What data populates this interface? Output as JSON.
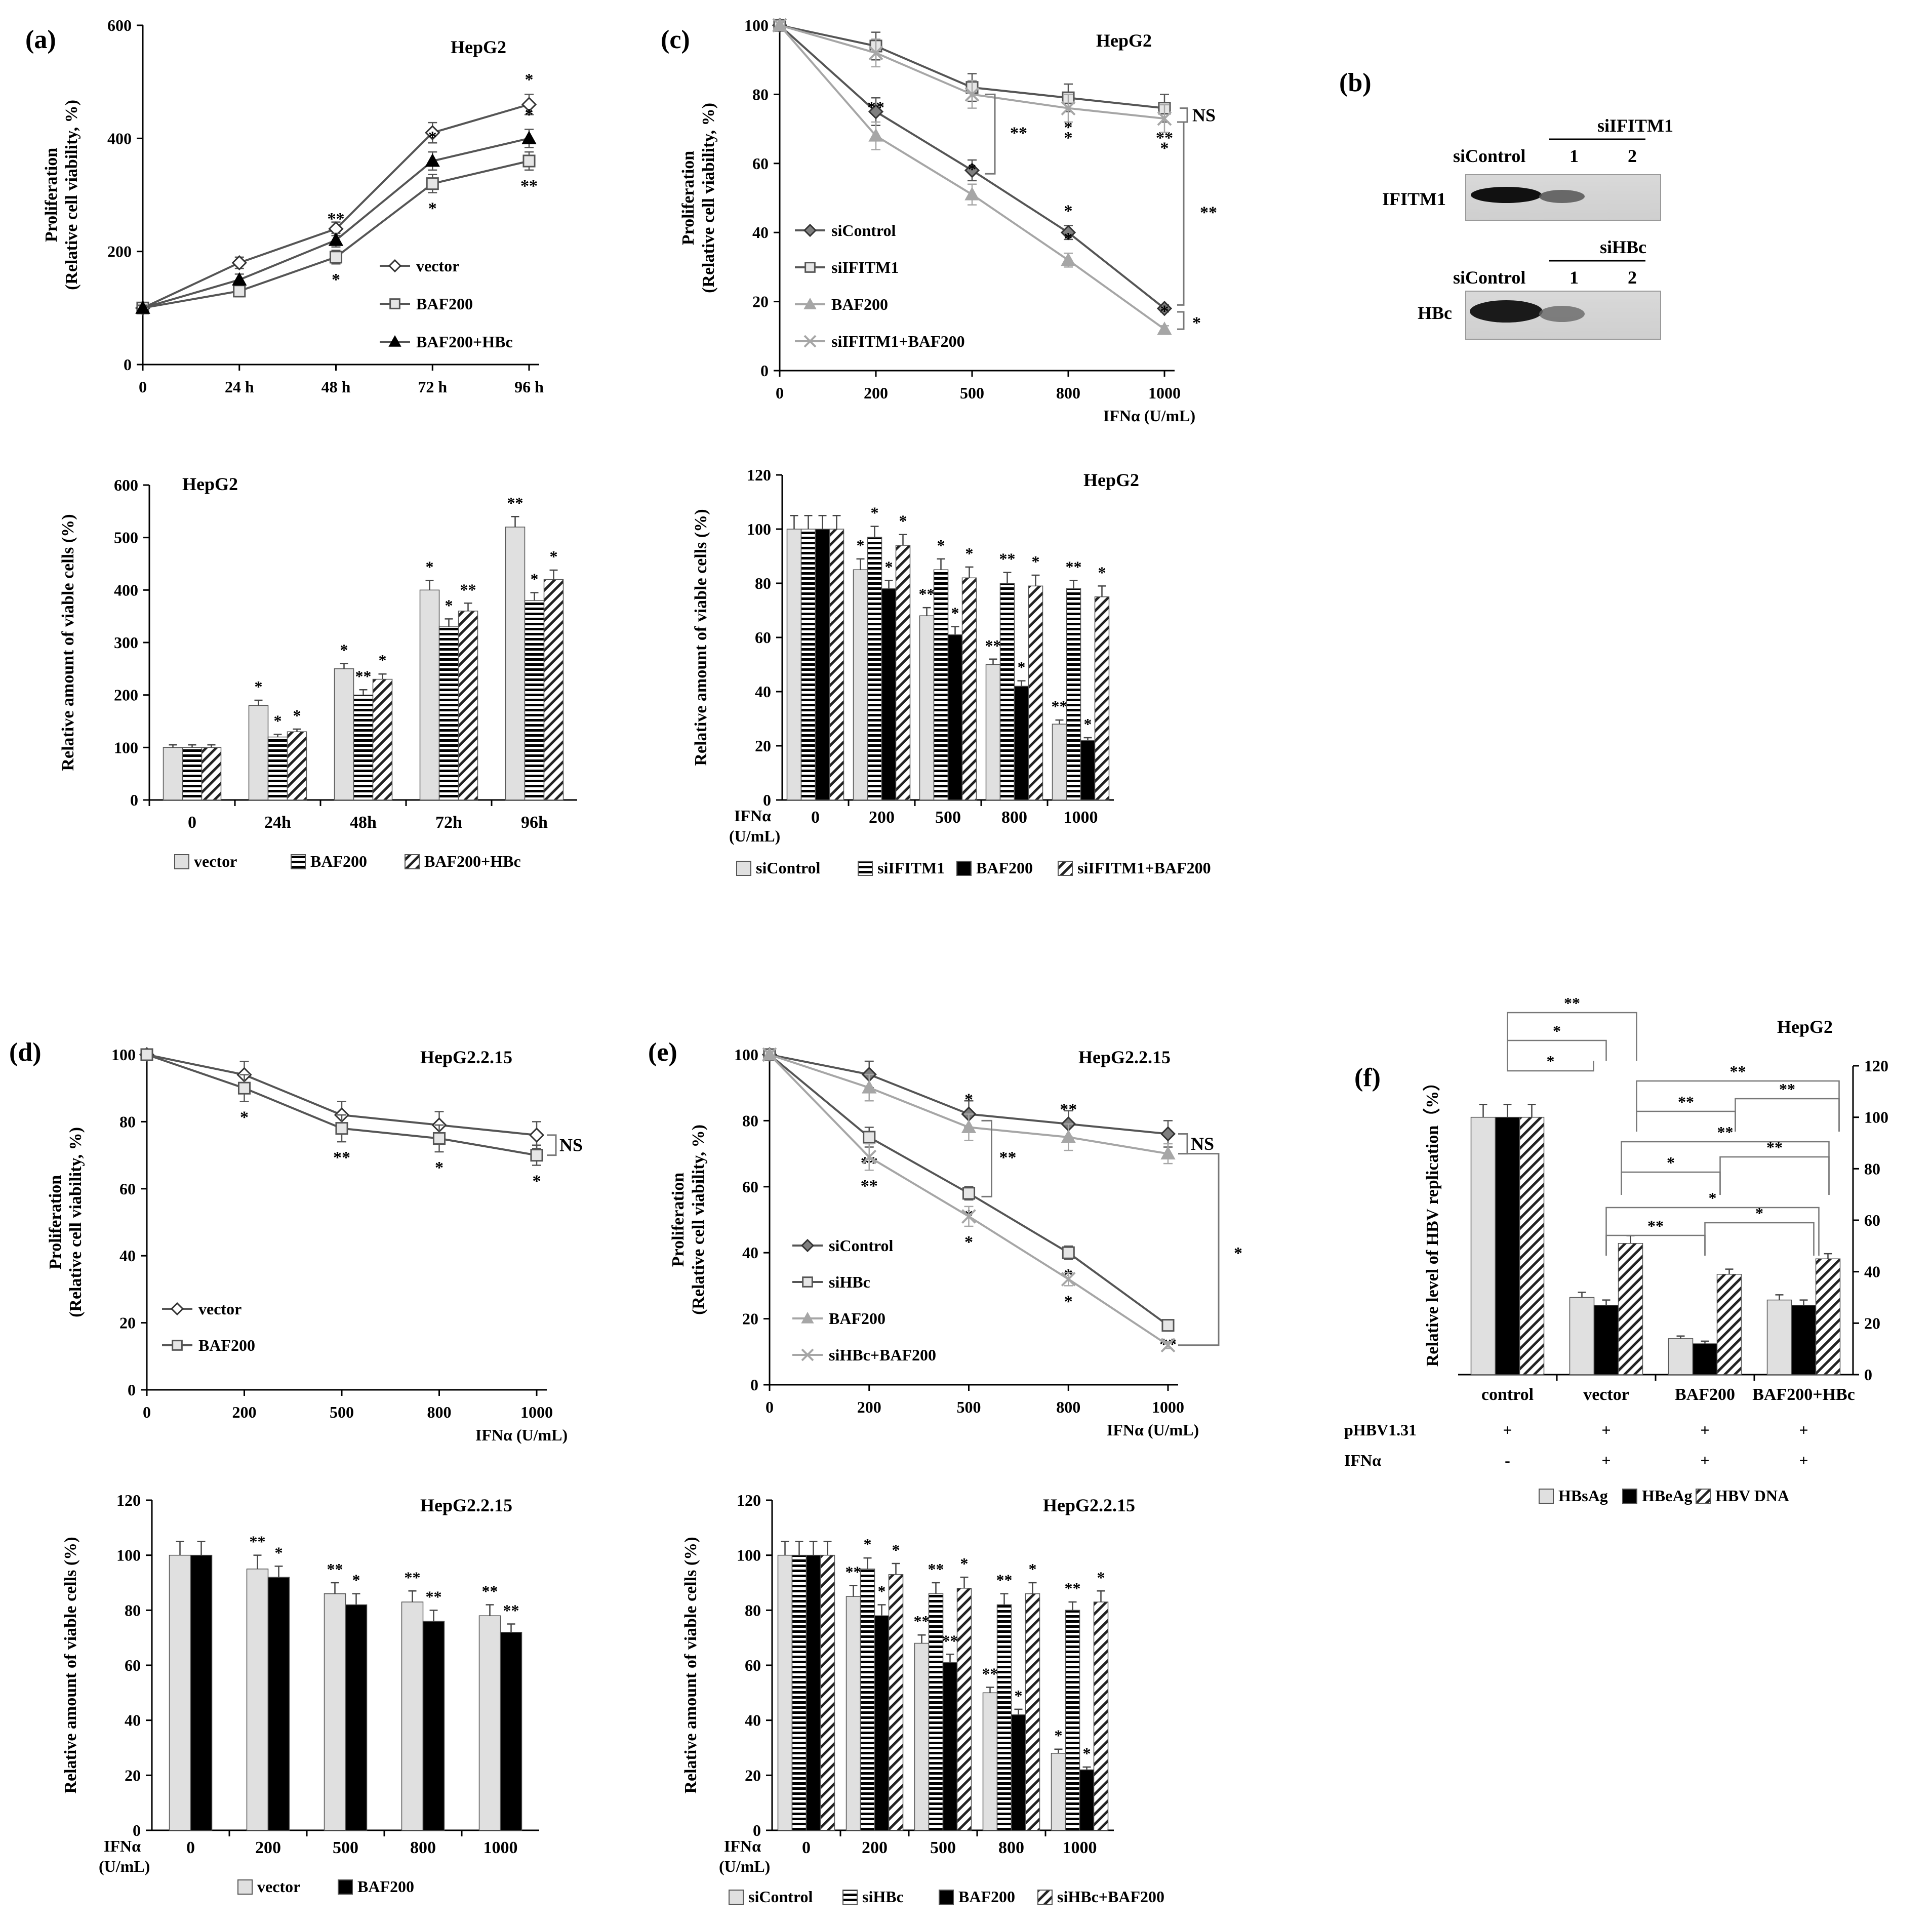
{
  "figure": {
    "panel_labels": [
      "(a)",
      "(b)",
      "(c)",
      "(d)",
      "(e)",
      "(f)"
    ]
  },
  "colors": {
    "vector": "#e0e0e0",
    "black": "#000000",
    "grey_line": "#a6a6a6",
    "blot_band": "#1a1a1a",
    "blot_bg": "#d9d9d9"
  },
  "chart_data": [
    {
      "id": "a_top",
      "type": "line",
      "panel": "(a)",
      "title": "HepG2",
      "ylabel": [
        "Proliferation",
        "(Relative cell viability, %)"
      ],
      "xlabel": "",
      "categories": [
        "0",
        "24 h",
        "48 h",
        "72 h",
        "96 h"
      ],
      "ylim": [
        0,
        600
      ],
      "yticks": [
        0,
        200,
        400,
        600
      ],
      "series": [
        {
          "name": "vector",
          "marker": "diamond-open",
          "values": [
            100,
            180,
            240,
            410,
            460
          ],
          "errors": [
            5,
            10,
            12,
            18,
            18
          ],
          "sig": [
            "",
            "",
            "",
            "",
            "*"
          ]
        },
        {
          "name": "BAF200",
          "marker": "square-open",
          "values": [
            100,
            130,
            190,
            320,
            360
          ],
          "errors": [
            5,
            10,
            12,
            16,
            16
          ],
          "sig": [
            "",
            "",
            "*",
            "*",
            "**"
          ]
        },
        {
          "name": "BAF200+HBc",
          "marker": "triangle-filled",
          "values": [
            100,
            150,
            220,
            360,
            400
          ],
          "errors": [
            5,
            10,
            12,
            16,
            16
          ],
          "sig": [
            "",
            "",
            "**",
            "*",
            "*"
          ]
        }
      ]
    },
    {
      "id": "a_bottom",
      "type": "bar",
      "title": "HepG2",
      "ylabel": "Relative amount of viable cells (%)",
      "categories": [
        "0",
        "24h",
        "48h",
        "72h",
        "96h"
      ],
      "ylim": [
        0,
        600
      ],
      "yticks": [
        0,
        100,
        200,
        300,
        400,
        500,
        600
      ],
      "series": [
        {
          "name": "vector",
          "pattern": "light",
          "values": [
            100,
            180,
            250,
            400,
            520
          ],
          "errors": [
            5,
            10,
            10,
            18,
            20
          ],
          "sig": [
            "",
            "*",
            "*",
            "*",
            "**"
          ]
        },
        {
          "name": "BAF200",
          "pattern": "hstripe",
          "values": [
            100,
            120,
            200,
            330,
            380
          ],
          "errors": [
            5,
            5,
            10,
            15,
            15
          ],
          "sig": [
            "",
            "*",
            "**",
            "*",
            "*"
          ]
        },
        {
          "name": "BAF200+HBc",
          "pattern": "diag",
          "values": [
            100,
            130,
            230,
            360,
            420
          ],
          "errors": [
            5,
            5,
            10,
            15,
            18
          ],
          "sig": [
            "",
            "*",
            "*",
            "**",
            "*"
          ]
        }
      ]
    },
    {
      "id": "c_top",
      "type": "line",
      "panel": "(c)",
      "title": "HepG2",
      "ylabel": [
        "Proliferation",
        "(Relative cell viability, %)"
      ],
      "xlabel": "IFNα (U/mL)",
      "categories": [
        "0",
        "200",
        "500",
        "800",
        "1000"
      ],
      "ylim": [
        0,
        100
      ],
      "yticks": [
        0,
        20,
        40,
        60,
        80,
        100
      ],
      "series": [
        {
          "name": "siControl",
          "marker": "diamond-filled",
          "values": [
            100,
            75,
            58,
            40,
            18
          ],
          "errors": [
            0,
            4,
            3,
            2,
            1
          ],
          "sig": [
            "",
            "",
            "",
            "*",
            ""
          ]
        },
        {
          "name": "siIFITM1",
          "marker": "square-open",
          "values": [
            100,
            94,
            82,
            79,
            76
          ],
          "errors": [
            0,
            4,
            4,
            4,
            4
          ],
          "sig": [
            "",
            "",
            "",
            "*",
            "**"
          ]
        },
        {
          "name": "BAF200",
          "marker": "triangle-grey",
          "values": [
            100,
            68,
            51,
            32,
            12
          ],
          "errors": [
            0,
            4,
            3,
            2,
            1
          ],
          "sig": [
            "",
            "**",
            "*",
            "*",
            "*"
          ]
        },
        {
          "name": "siIFITM1+BAF200",
          "marker": "x-grey",
          "values": [
            100,
            92,
            80,
            76,
            73
          ],
          "errors": [
            0,
            4,
            4,
            4,
            4
          ],
          "sig": [
            "",
            "",
            "",
            "*",
            "*"
          ]
        }
      ],
      "annotations": [
        "NS",
        "**",
        "**",
        "*"
      ]
    },
    {
      "id": "c_bottom",
      "type": "bar",
      "title": "HepG2",
      "ylabel": "Relative amount of viable cells (%)",
      "xprefix": [
        "IFNα",
        "(U/mL)"
      ],
      "categories": [
        "0",
        "200",
        "500",
        "800",
        "1000"
      ],
      "ylim": [
        0,
        120
      ],
      "yticks": [
        0,
        20,
        40,
        60,
        80,
        100,
        120
      ],
      "series": [
        {
          "name": "siControl",
          "pattern": "light",
          "values": [
            100,
            85,
            68,
            50,
            28
          ],
          "errors": [
            5,
            4,
            3,
            2,
            1.5
          ],
          "sig": [
            "",
            "*",
            "**",
            "**",
            "**"
          ]
        },
        {
          "name": "siIFITM1",
          "pattern": "hstripe",
          "values": [
            100,
            97,
            85,
            80,
            78
          ],
          "errors": [
            5,
            4,
            4,
            4,
            3
          ],
          "sig": [
            "",
            "*",
            "*",
            "**",
            "**"
          ]
        },
        {
          "name": "BAF200",
          "pattern": "black",
          "values": [
            100,
            78,
            61,
            42,
            22
          ],
          "errors": [
            5,
            3,
            3,
            2,
            1
          ],
          "sig": [
            "",
            "*",
            "*",
            "*",
            "*"
          ]
        },
        {
          "name": "siIFITM1+BAF200",
          "pattern": "diag",
          "values": [
            100,
            94,
            82,
            79,
            75
          ],
          "errors": [
            5,
            4,
            4,
            4,
            4
          ],
          "sig": [
            "",
            "*",
            "*",
            "*",
            "*"
          ]
        }
      ]
    },
    {
      "id": "d_top",
      "type": "line",
      "panel": "(d)",
      "title": "HepG2.2.15",
      "ylabel": [
        "Proliferation",
        "(Relative cell viability, %)"
      ],
      "xlabel": "IFNα (U/mL)",
      "categories": [
        "0",
        "200",
        "500",
        "800",
        "1000"
      ],
      "ylim": [
        0,
        100
      ],
      "yticks": [
        0,
        20,
        40,
        60,
        80,
        100
      ],
      "series": [
        {
          "name": "vector",
          "marker": "diamond-open",
          "values": [
            100,
            94,
            82,
            79,
            76
          ],
          "errors": [
            0,
            4,
            4,
            4,
            4
          ],
          "sig": [
            "",
            "",
            "",
            "",
            ""
          ]
        },
        {
          "name": "BAF200",
          "marker": "square-open",
          "values": [
            100,
            90,
            78,
            75,
            70
          ],
          "errors": [
            0,
            4,
            4,
            4,
            3
          ],
          "sig": [
            "",
            "*",
            "**",
            "*",
            "*"
          ]
        }
      ],
      "annotations": [
        "NS"
      ]
    },
    {
      "id": "d_bottom",
      "type": "bar",
      "title": "HepG2.2.15",
      "ylabel": "Relative amount of viable cells (%)",
      "xprefix": [
        "IFNα",
        "(U/mL)"
      ],
      "categories": [
        "0",
        "200",
        "500",
        "800",
        "1000"
      ],
      "ylim": [
        0,
        120
      ],
      "yticks": [
        0,
        20,
        40,
        60,
        80,
        100,
        120
      ],
      "series": [
        {
          "name": "vector",
          "pattern": "light",
          "values": [
            100,
            95,
            86,
            83,
            78
          ],
          "errors": [
            5,
            5,
            4,
            4,
            4
          ],
          "sig": [
            "",
            "**",
            "**",
            "**",
            "**"
          ]
        },
        {
          "name": "BAF200",
          "pattern": "black",
          "values": [
            100,
            92,
            82,
            76,
            72
          ],
          "errors": [
            5,
            4,
            4,
            4,
            3
          ],
          "sig": [
            "",
            "*",
            "*",
            "**",
            "**"
          ]
        }
      ]
    },
    {
      "id": "e_top",
      "type": "line",
      "panel": "(e)",
      "title": "HepG2.2.15",
      "ylabel": [
        "Proliferation",
        "(Relative cell viability, %)"
      ],
      "xlabel": "IFNα (U/mL)",
      "categories": [
        "0",
        "200",
        "500",
        "800",
        "1000"
      ],
      "ylim": [
        0,
        100
      ],
      "yticks": [
        0,
        20,
        40,
        60,
        80,
        100
      ],
      "series": [
        {
          "name": "siControl",
          "marker": "diamond-filled",
          "values": [
            100,
            94,
            82,
            79,
            76
          ],
          "errors": [
            0,
            4,
            4,
            4,
            4
          ],
          "sig": [
            "",
            "",
            "",
            "",
            ""
          ]
        },
        {
          "name": "siHBc",
          "marker": "square-open",
          "values": [
            100,
            75,
            58,
            40,
            18
          ],
          "errors": [
            0,
            3,
            2,
            2,
            1
          ],
          "sig": [
            "",
            "**",
            "*",
            "*",
            "**"
          ]
        },
        {
          "name": "BAF200",
          "marker": "triangle-grey",
          "values": [
            100,
            90,
            78,
            75,
            70
          ],
          "errors": [
            0,
            4,
            4,
            4,
            3
          ],
          "sig": [
            "",
            "",
            "*",
            "**",
            ""
          ]
        },
        {
          "name": "siHBc+BAF200",
          "marker": "x-grey",
          "values": [
            100,
            69,
            51,
            32,
            12
          ],
          "errors": [
            0,
            4,
            3,
            2,
            1
          ],
          "sig": [
            "",
            "**",
            "*",
            "*",
            ""
          ]
        }
      ],
      "annotations": [
        "NS",
        "**",
        "*"
      ]
    },
    {
      "id": "e_bottom",
      "type": "bar",
      "title": "HepG2.2.15",
      "ylabel": "Relative amount of viable cells (%)",
      "xprefix": [
        "IFNα",
        "(U/mL)"
      ],
      "categories": [
        "0",
        "200",
        "500",
        "800",
        "1000"
      ],
      "ylim": [
        0,
        120
      ],
      "yticks": [
        0,
        20,
        40,
        60,
        80,
        100,
        120
      ],
      "series": [
        {
          "name": "siControl",
          "pattern": "light",
          "values": [
            100,
            85,
            68,
            50,
            28
          ],
          "errors": [
            5,
            4,
            3,
            2,
            1.5
          ],
          "sig": [
            "",
            "**",
            "**",
            "**",
            "*"
          ]
        },
        {
          "name": "siHBc",
          "pattern": "hstripe",
          "values": [
            100,
            95,
            86,
            82,
            80
          ],
          "errors": [
            5,
            4,
            4,
            4,
            3
          ],
          "sig": [
            "",
            "*",
            "**",
            "**",
            "**"
          ]
        },
        {
          "name": "BAF200",
          "pattern": "black",
          "values": [
            100,
            78,
            61,
            42,
            22
          ],
          "errors": [
            5,
            4,
            3,
            2,
            1
          ],
          "sig": [
            "",
            "*",
            "**",
            "*",
            "*"
          ]
        },
        {
          "name": "siHBc+BAF200",
          "pattern": "diag",
          "values": [
            100,
            93,
            88,
            86,
            83
          ],
          "errors": [
            5,
            4,
            4,
            4,
            4
          ],
          "sig": [
            "",
            "*",
            "*",
            "*",
            "*"
          ]
        }
      ]
    },
    {
      "id": "f",
      "type": "bar",
      "panel": "(f)",
      "title": "HepG2",
      "ylabel": "Relative level of HBV replication（%）",
      "categories": [
        "control",
        "vector",
        "BAF200",
        "BAF200+HBc"
      ],
      "ylim": [
        0,
        120
      ],
      "yticks": [
        0,
        20,
        40,
        60,
        80,
        100,
        120
      ],
      "y_axis_side": "right",
      "series": [
        {
          "name": "HBsAg",
          "pattern": "light",
          "values": [
            100,
            30,
            14,
            29
          ],
          "errors": [
            5,
            2,
            1,
            2
          ]
        },
        {
          "name": "HBeAg",
          "pattern": "black",
          "values": [
            100,
            27,
            12,
            27
          ],
          "errors": [
            5,
            2,
            1,
            2
          ]
        },
        {
          "name": "HBV DNA",
          "pattern": "diag",
          "values": [
            100,
            51,
            39,
            45
          ],
          "errors": [
            5,
            3,
            2,
            2
          ]
        }
      ],
      "conditions": [
        {
          "label": "pHBV1.31",
          "values": [
            "+",
            "+",
            "+",
            "+"
          ]
        },
        {
          "label": "IFNα",
          "values": [
            "-",
            "+",
            "+",
            "+"
          ]
        }
      ],
      "significance": [
        "**",
        "*",
        "*",
        "**",
        "**",
        "**",
        "**",
        "*",
        "**",
        "*",
        "**",
        "*"
      ]
    }
  ],
  "blot": {
    "panel": "(b)",
    "rows": [
      {
        "protein": "IFITM1",
        "control": "siControl",
        "group": "siIFITM1",
        "lanes": [
          "1",
          "2"
        ]
      },
      {
        "protein": "HBc",
        "control": "siControl",
        "group": "siHBc",
        "lanes": [
          "1",
          "2"
        ]
      }
    ]
  }
}
